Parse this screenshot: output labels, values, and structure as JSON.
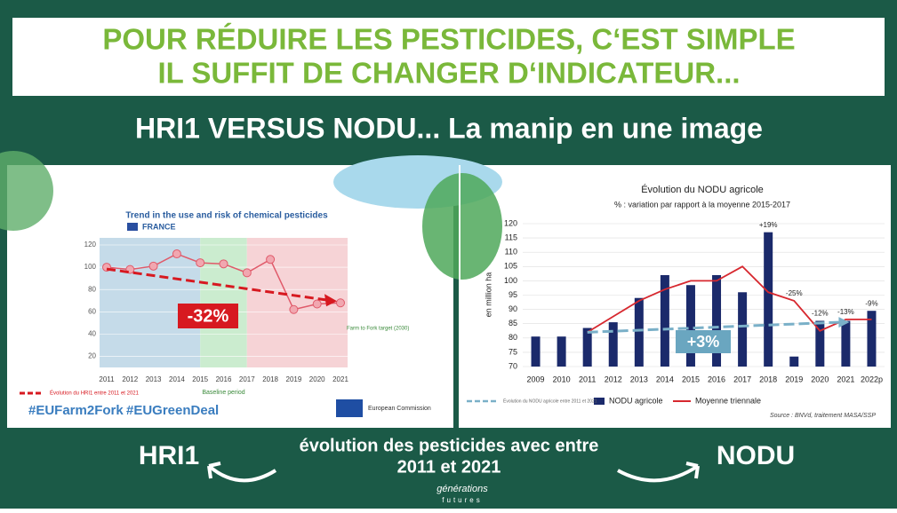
{
  "header": {
    "line1": "POUR RÉDUIRE LES PESTICIDES, C‘EST SIMPLE",
    "line2": "IL SUFFIT DE CHANGER D‘INDICATEUR...",
    "subtitle": "HRI1 VERSUS NODU... La manip en une image"
  },
  "chart_data": [
    {
      "type": "line",
      "title": "Trend in the use and risk of chemical pesticides",
      "subtitle": "FRANCE",
      "categories": [
        "2011",
        "2012",
        "2013",
        "2014",
        "2015",
        "2016",
        "2017",
        "2018",
        "2019",
        "2020",
        "2021"
      ],
      "values": [
        100,
        98,
        101,
        112,
        104,
        103,
        95,
        107,
        62,
        67,
        68
      ],
      "color": "#e05a6a",
      "ylim": [
        10,
        120
      ],
      "yticks": [
        20,
        40,
        60,
        80,
        100,
        120
      ],
      "change": "-32%",
      "baseline": "Baseline period",
      "target": "Farm to Fork target (2030)",
      "legend": "Évolution du HRI1 entre 2011 et 2021"
    },
    {
      "type": "bar",
      "title": "Évolution du NODU agricole",
      "subtitle": "% : variation par rapport à la moyenne 2015-2017",
      "y_label": "en million ha",
      "categories": [
        "2009",
        "2010",
        "2011",
        "2012",
        "2013",
        "2014",
        "2015",
        "2016",
        "2017",
        "2018",
        "2019",
        "2020",
        "2021",
        "2022p"
      ],
      "series": [
        {
          "name": "NODU agricole",
          "type": "bar",
          "color": "#1b2a6b",
          "values": [
            80.5,
            80.5,
            83.5,
            85.5,
            94,
            102,
            98.5,
            102,
            96,
            117,
            73.5,
            86,
            86,
            89.5
          ]
        },
        {
          "name": "Moyenne triennale",
          "type": "line",
          "color": "#d7282f",
          "values": [
            null,
            null,
            82,
            87.5,
            93,
            97,
            100,
            100,
            105,
            96,
            93,
            82.5,
            86.5,
            86.5
          ]
        }
      ],
      "bar_labels": [
        null,
        null,
        null,
        null,
        null,
        null,
        null,
        null,
        null,
        "+19%",
        "-25%",
        "-12%",
        "-13%",
        "-9%"
      ],
      "ylim": [
        70,
        120
      ],
      "yticks": [
        70,
        75,
        80,
        85,
        90,
        95,
        100,
        105,
        110,
        115,
        120
      ],
      "change": "+3%",
      "legend": "Évolution du NODU agricole entre 2011 et 2021",
      "source": "Source : BNVd, traitement MASA/SSP"
    }
  ],
  "hashtags": [
    "#EUFarm2Fork",
    "#EUGreenDeal"
  ],
  "logo": "European Commission",
  "footer": {
    "left": "HRI1",
    "middle1": "évolution des pesticides avec entre",
    "middle2": "2011 et 2021",
    "right": "NODU",
    "brand1": "générations",
    "brand2": "futures"
  }
}
